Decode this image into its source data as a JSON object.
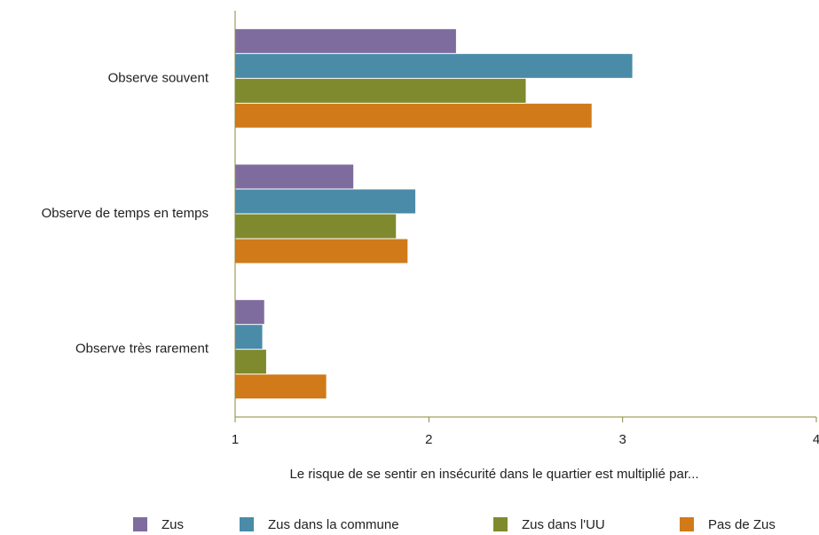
{
  "chart_data": {
    "type": "hbar",
    "xlabel": "Le risque de se sentir en insécurité dans le quartier est multiplié par...",
    "categories": [
      "Observe souvent",
      "Observe de temps en temps",
      "Observe très rarement"
    ],
    "series": [
      {
        "name": "Zus",
        "color": "#7f6c9e",
        "values": [
          2.14,
          1.61,
          1.15
        ]
      },
      {
        "name": "Zus dans la commune",
        "color": "#4a8ba8",
        "values": [
          3.05,
          1.93,
          1.14
        ]
      },
      {
        "name": "Zus dans l'UU",
        "color": "#7f8a2e",
        "values": [
          2.5,
          1.83,
          1.16
        ]
      },
      {
        "name": "Pas de Zus",
        "color": "#d07a1a",
        "values": [
          2.84,
          1.89,
          1.47
        ]
      }
    ],
    "xlim": [
      1,
      4
    ],
    "xticks": [
      1,
      2,
      3,
      4
    ],
    "legend": "bottom"
  }
}
